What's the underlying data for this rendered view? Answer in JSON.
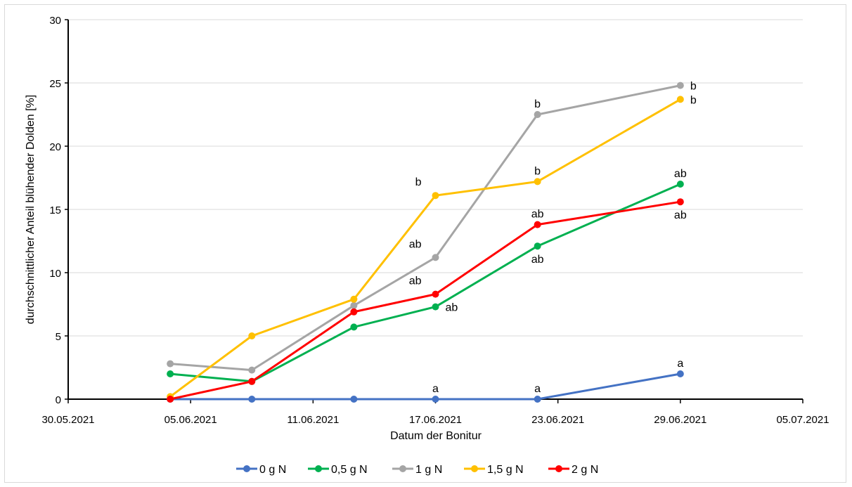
{
  "chart_data": {
    "type": "line",
    "title": "",
    "xlabel": "Datum der Bonitur",
    "ylabel": "durchschnittlicher Anteil blühender Dolden [%]",
    "xlim": [
      "2021-05-30",
      "2021-07-05"
    ],
    "ylim": [
      0,
      30
    ],
    "x_ticks": [
      "30.05.2021",
      "05.06.2021",
      "11.06.2021",
      "17.06.2021",
      "23.06.2021",
      "29.06.2021",
      "05.07.2021"
    ],
    "y_ticks": [
      0,
      5,
      10,
      15,
      20,
      25,
      30
    ],
    "grid": "horizontal",
    "legend_position": "bottom",
    "series": [
      {
        "name": "0 g N",
        "color": "#4472C4",
        "points": [
          {
            "x": "2021-06-04",
            "y": 0
          },
          {
            "x": "2021-06-08",
            "y": 0
          },
          {
            "x": "2021-06-13",
            "y": 0
          },
          {
            "x": "2021-06-17",
            "y": 0
          },
          {
            "x": "2021-06-22",
            "y": 0
          },
          {
            "x": "2021-06-29",
            "y": 2.0
          }
        ]
      },
      {
        "name": "0,5 g N",
        "color": "#00B050",
        "points": [
          {
            "x": "2021-06-04",
            "y": 2.0
          },
          {
            "x": "2021-06-08",
            "y": 1.4
          },
          {
            "x": "2021-06-13",
            "y": 5.7
          },
          {
            "x": "2021-06-17",
            "y": 7.3
          },
          {
            "x": "2021-06-22",
            "y": 12.1
          },
          {
            "x": "2021-06-29",
            "y": 17.0
          }
        ]
      },
      {
        "name": "1 g N",
        "color": "#A5A5A5",
        "points": [
          {
            "x": "2021-06-04",
            "y": 2.8
          },
          {
            "x": "2021-06-08",
            "y": 2.3
          },
          {
            "x": "2021-06-13",
            "y": 7.4
          },
          {
            "x": "2021-06-17",
            "y": 11.2
          },
          {
            "x": "2021-06-22",
            "y": 22.5
          },
          {
            "x": "2021-06-29",
            "y": 24.8
          }
        ]
      },
      {
        "name": "1,5 g N",
        "color": "#FFC000",
        "points": [
          {
            "x": "2021-06-04",
            "y": 0.2
          },
          {
            "x": "2021-06-08",
            "y": 5.0
          },
          {
            "x": "2021-06-13",
            "y": 7.9
          },
          {
            "x": "2021-06-17",
            "y": 16.1
          },
          {
            "x": "2021-06-22",
            "y": 17.2
          },
          {
            "x": "2021-06-29",
            "y": 23.7
          }
        ]
      },
      {
        "name": "2 g N",
        "color": "#FF0000",
        "points": [
          {
            "x": "2021-06-04",
            "y": 0.0
          },
          {
            "x": "2021-06-08",
            "y": 1.4
          },
          {
            "x": "2021-06-13",
            "y": 6.9
          },
          {
            "x": "2021-06-17",
            "y": 8.3
          },
          {
            "x": "2021-06-22",
            "y": 13.8
          },
          {
            "x": "2021-06-29",
            "y": 15.6
          }
        ]
      }
    ],
    "annotations": [
      {
        "text": "a",
        "x": "2021-06-17",
        "y": 0,
        "series": "0 g N",
        "placement": "above"
      },
      {
        "text": "a",
        "x": "2021-06-22",
        "y": 0,
        "series": "0 g N",
        "placement": "above"
      },
      {
        "text": "a",
        "x": "2021-06-29",
        "y": 2.0,
        "series": "0 g N",
        "placement": "above"
      },
      {
        "text": "ab",
        "x": "2021-06-17",
        "y": 7.3,
        "series": "0,5 g N",
        "placement": "right"
      },
      {
        "text": "ab",
        "x": "2021-06-22",
        "y": 12.1,
        "series": "0,5 g N",
        "placement": "below"
      },
      {
        "text": "ab",
        "x": "2021-06-29",
        "y": 17.0,
        "series": "0,5 g N",
        "placement": "above"
      },
      {
        "text": "ab",
        "x": "2021-06-17",
        "y": 11.2,
        "series": "1 g N",
        "placement": "left"
      },
      {
        "text": "b",
        "x": "2021-06-22",
        "y": 22.5,
        "series": "1 g N",
        "placement": "above"
      },
      {
        "text": "b",
        "x": "2021-06-29",
        "y": 24.8,
        "series": "1 g N",
        "placement": "right"
      },
      {
        "text": "b",
        "x": "2021-06-17",
        "y": 16.1,
        "series": "1,5 g N",
        "placement": "left"
      },
      {
        "text": "b",
        "x": "2021-06-22",
        "y": 17.2,
        "series": "1,5 g N",
        "placement": "above"
      },
      {
        "text": "b",
        "x": "2021-06-29",
        "y": 23.7,
        "series": "1,5 g N",
        "placement": "right"
      },
      {
        "text": "ab",
        "x": "2021-06-17",
        "y": 8.3,
        "series": "2 g N",
        "placement": "left"
      },
      {
        "text": "ab",
        "x": "2021-06-22",
        "y": 13.8,
        "series": "2 g N",
        "placement": "above"
      },
      {
        "text": "ab",
        "x": "2021-06-29",
        "y": 15.6,
        "series": "2 g N",
        "placement": "below"
      }
    ]
  }
}
